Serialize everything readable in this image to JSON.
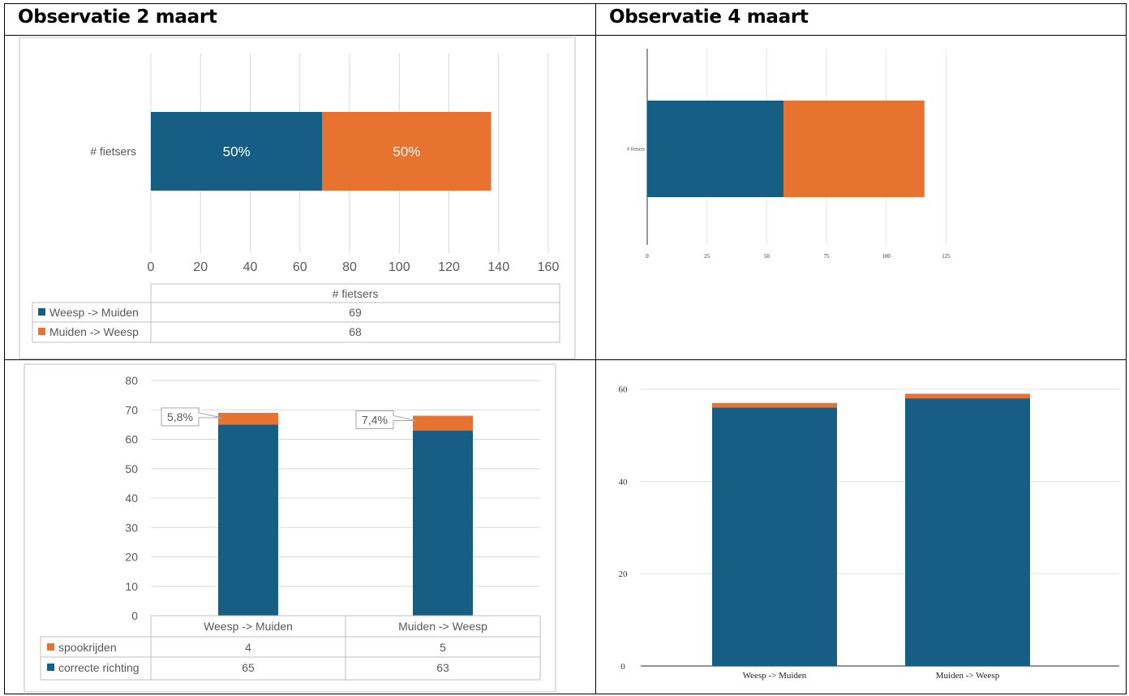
{
  "headers": {
    "left": "Observatie 2 maart",
    "right": "Observatie 4 maart"
  },
  "colors": {
    "blue": "#165e83",
    "orange": "#e87331",
    "grid": "#d9d9d9",
    "border": "#bfbfbf"
  },
  "chart_data": [
    {
      "id": "c1",
      "type": "bar",
      "orientation": "horizontal",
      "stacked": true,
      "categories": [
        "# fietsers"
      ],
      "series": [
        {
          "name": "Weesp -> Muiden",
          "values": [
            69
          ],
          "label": "50%"
        },
        {
          "name": "Muiden -> Weesp",
          "values": [
            68
          ],
          "label": "50%"
        }
      ],
      "xlim": [
        0,
        160
      ],
      "xticks": [
        0,
        20,
        40,
        60,
        80,
        100,
        120,
        140,
        160
      ],
      "table_header": "# fietsers",
      "grid": true
    },
    {
      "id": "c2",
      "type": "bar",
      "orientation": "horizontal",
      "stacked": true,
      "categories": [
        "# fietsers"
      ],
      "series": [
        {
          "values": [
            57
          ]
        },
        {
          "values": [
            59
          ]
        }
      ],
      "xlim": [
        0,
        150
      ],
      "xticks": [
        0,
        25,
        50,
        75,
        100,
        125
      ],
      "grid": true
    },
    {
      "id": "c3",
      "type": "bar",
      "orientation": "vertical",
      "stacked": true,
      "categories": [
        "Weesp -> Muiden",
        "Muiden -> Weesp"
      ],
      "series": [
        {
          "name": "correcte richting",
          "values": [
            65,
            63
          ]
        },
        {
          "name": "spookrijden",
          "values": [
            4,
            5
          ]
        }
      ],
      "callouts": [
        "5,8%",
        "7,4%"
      ],
      "ylim": [
        0,
        80
      ],
      "yticks": [
        0,
        10,
        20,
        30,
        40,
        50,
        60,
        70,
        80
      ],
      "table_rows_order": [
        "spookrijden",
        "correcte richting"
      ],
      "grid": true
    },
    {
      "id": "c4",
      "type": "bar",
      "orientation": "vertical",
      "stacked": true,
      "categories": [
        "Weesp -> Muiden",
        "Muiden -> Weesp"
      ],
      "series": [
        {
          "values": [
            56,
            58
          ]
        },
        {
          "values": [
            1,
            1
          ]
        }
      ],
      "ylim": [
        0,
        61
      ],
      "yticks": [
        0,
        20,
        40,
        60
      ],
      "grid": true
    }
  ]
}
